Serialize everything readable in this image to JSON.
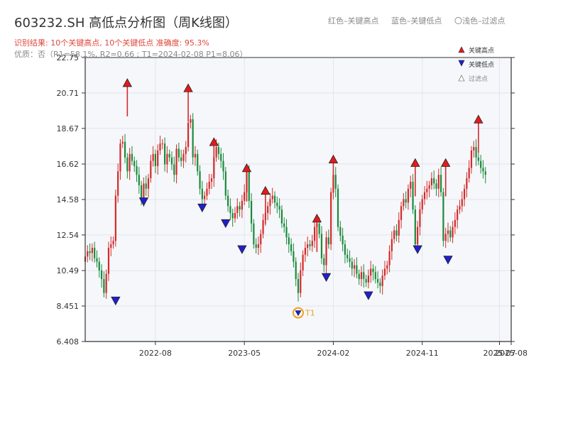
{
  "header": {
    "title": "603232.SH 高低点分析图（周K线图）",
    "result": "识别结果: 10个关键高点, 10个关键低点   准确度: 95.3%",
    "quality": "优质：否（R1=58.1%, R2=0.66 ; T1=2024-02-08 P1=8.06）",
    "legend_red": "红色–关键高点",
    "legend_blue": "蓝色–关键低点",
    "legend_light": "〇浅色–过滤点"
  },
  "colors": {
    "up": "#d42a2a",
    "down": "#1a8a3c",
    "high": "#e31a1c",
    "low": "#1f1fcf",
    "t1": "#f0a020",
    "plotbg": "#f5f7fa",
    "grid": "#e2e6ec"
  },
  "chart_data": {
    "type": "candlestick",
    "title": "603232.SH 高低点分析图（周K线图）",
    "ylim": [
      6.408,
      22.75
    ],
    "y_ticks": [
      "6.408",
      "8.451",
      "10.49",
      "12.54",
      "14.58",
      "16.62",
      "18.67",
      "20.71",
      "22.75"
    ],
    "x_ticks": [
      {
        "label": "2022-08",
        "week": 15
      },
      {
        "label": "2023-05",
        "week": 53
      },
      {
        "label": "2024-02",
        "week": 91
      },
      {
        "label": "2024-11",
        "week": 129
      },
      {
        "label": "2025-07",
        "week": 162
      },
      {
        "label": "2025-08",
        "week": 167
      }
    ],
    "n_weeks": 167,
    "x_start": -15,
    "x_end": 167,
    "closes": [
      11.3,
      11.6,
      11.5,
      11.8,
      11.2,
      11.0,
      10.5,
      10.0,
      9.2,
      10.3,
      11.8,
      12.0,
      12.2,
      14.8,
      16.2,
      17.8,
      17.9,
      17.0,
      16.2,
      17.2,
      16.8,
      16.5,
      16.0,
      15.4,
      14.5,
      15.5,
      15.2,
      15.8,
      16.8,
      17.2,
      16.5,
      17.4,
      17.8,
      17.8,
      16.6,
      17.2,
      17.0,
      16.6,
      16.0,
      17.5,
      17.0,
      16.8,
      17.2,
      17.6,
      19.0,
      19.2,
      17.0,
      17.2,
      16.2,
      15.2,
      14.6,
      14.8,
      15.2,
      15.6,
      15.8,
      17.0,
      17.6,
      17.2,
      16.8,
      16.2,
      14.8,
      14.2,
      13.8,
      13.5,
      13.8,
      14.2,
      14.0,
      14.5,
      15.0,
      16.2,
      14.5,
      13.2,
      12.0,
      11.8,
      12.0,
      12.6,
      13.4,
      13.8,
      14.2,
      14.6,
      14.8,
      14.4,
      14.2,
      14.0,
      13.2,
      13.0,
      12.4,
      12.0,
      11.6,
      11.0,
      10.0,
      9.2,
      10.5,
      11.4,
      11.8,
      12.0,
      11.9,
      12.2,
      13.0,
      13.2,
      12.6,
      11.2,
      10.8,
      12.4,
      12.0,
      15.0,
      16.0,
      15.2,
      13.0,
      12.5,
      12.0,
      11.4,
      11.2,
      11.0,
      10.6,
      10.8,
      10.3,
      10.0,
      10.4,
      10.0,
      9.8,
      10.2,
      10.6,
      10.4,
      10.0,
      9.8,
      9.6,
      10.2,
      10.6,
      10.8,
      11.6,
      12.3,
      12.8,
      12.5,
      13.4,
      14.2,
      14.6,
      14.4,
      15.2,
      15.6,
      14.0,
      12.0,
      13.0,
      14.0,
      14.6,
      15.0,
      15.2,
      15.4,
      15.8,
      15.5,
      15.2,
      16.0,
      15.0,
      12.2,
      12.6,
      12.8,
      12.4,
      13.0,
      13.4,
      14.0,
      14.2,
      14.6,
      15.2,
      15.8,
      16.4,
      17.4,
      17.6,
      17.0,
      16.8,
      16.4,
      16.2,
      16.0
    ],
    "key_highs": [
      {
        "week": 18,
        "price": 21.2
      },
      {
        "week": 44,
        "price": 20.9
      },
      {
        "week": 55,
        "price": 17.8
      },
      {
        "week": 69,
        "price": 16.3
      },
      {
        "week": 77,
        "price": 15.0
      },
      {
        "week": 99,
        "price": 13.4
      },
      {
        "week": 106,
        "price": 16.8
      },
      {
        "week": 141,
        "price": 16.6
      },
      {
        "week": 154,
        "price": 16.6
      },
      {
        "week": 168,
        "price": 19.1
      }
    ],
    "key_lows": [
      {
        "week": 13,
        "price": 8.85
      },
      {
        "week": 25,
        "price": 14.55
      },
      {
        "week": 50,
        "price": 14.2
      },
      {
        "week": 60,
        "price": 13.3
      },
      {
        "week": 67,
        "price": 11.8
      },
      {
        "week": 103,
        "price": 10.2
      },
      {
        "week": 121,
        "price": 9.15
      },
      {
        "week": 142,
        "price": 11.8
      },
      {
        "week": 155,
        "price": 11.2
      },
      {
        "week": 91,
        "price": 8.06
      }
    ],
    "legend": [
      "关键高点",
      "关键低点",
      "过滤点"
    ],
    "annotations": [
      {
        "label": "T1",
        "week": 91,
        "price": 8.06
      }
    ]
  }
}
